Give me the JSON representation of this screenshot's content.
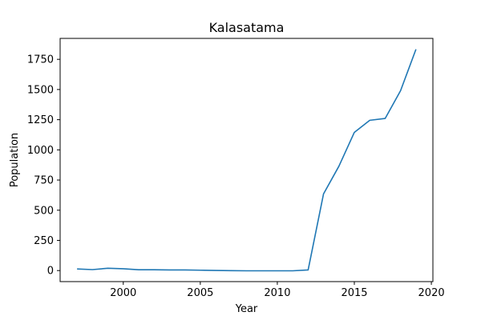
{
  "chart_data": {
    "type": "line",
    "title": "Kalasatama",
    "xlabel": "Year",
    "ylabel": "Population",
    "xlim": [
      1995.9,
      2020.1
    ],
    "ylim": [
      -91.5,
      1923.5
    ],
    "x_ticks": [
      2000,
      2005,
      2010,
      2015,
      2020
    ],
    "y_ticks": [
      0,
      250,
      500,
      750,
      1000,
      1250,
      1500,
      1750
    ],
    "x_tick_labels": [
      "2000",
      "2005",
      "2010",
      "2015",
      "2020"
    ],
    "y_tick_labels": [
      "0",
      "250",
      "500",
      "750",
      "1000",
      "1250",
      "1500",
      "1750"
    ],
    "grid": false,
    "series": [
      {
        "color": "#1f77b4",
        "x": [
          1997,
          1998,
          1999,
          2000,
          2001,
          2002,
          2003,
          2004,
          2005,
          2006,
          2007,
          2008,
          2009,
          2010,
          2011,
          2012,
          2013,
          2014,
          2015,
          2016,
          2017,
          2018,
          2019
        ],
        "y": [
          13,
          8,
          19,
          15,
          7,
          7,
          5,
          5,
          3,
          1,
          -1,
          -2,
          -2,
          -2,
          -2,
          5,
          635,
          865,
          1145,
          1245,
          1260,
          1490,
          1833
        ]
      }
    ]
  }
}
